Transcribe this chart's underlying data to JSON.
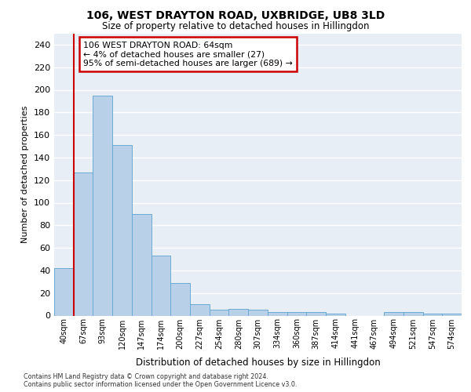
{
  "title1": "106, WEST DRAYTON ROAD, UXBRIDGE, UB8 3LD",
  "title2": "Size of property relative to detached houses in Hillingdon",
  "xlabel": "Distribution of detached houses by size in Hillingdon",
  "ylabel": "Number of detached properties",
  "categories": [
    "40sqm",
    "67sqm",
    "93sqm",
    "120sqm",
    "147sqm",
    "174sqm",
    "200sqm",
    "227sqm",
    "254sqm",
    "280sqm",
    "307sqm",
    "334sqm",
    "360sqm",
    "387sqm",
    "414sqm",
    "441sqm",
    "467sqm",
    "494sqm",
    "521sqm",
    "547sqm",
    "574sqm"
  ],
  "values": [
    42,
    127,
    195,
    151,
    90,
    53,
    29,
    10,
    5,
    6,
    5,
    3,
    3,
    3,
    2,
    0,
    0,
    3,
    3,
    2,
    2
  ],
  "bar_color": "#b8d0e8",
  "bar_edge_color": "#6aaad4",
  "vline_color": "#cc0000",
  "annotation_text": "106 WEST DRAYTON ROAD: 64sqm\n← 4% of detached houses are smaller (27)\n95% of semi-detached houses are larger (689) →",
  "annotation_box_facecolor": "#ffffff",
  "annotation_box_edgecolor": "#cc0000",
  "ylim": [
    0,
    250
  ],
  "yticks": [
    0,
    20,
    40,
    60,
    80,
    100,
    120,
    140,
    160,
    180,
    200,
    220,
    240
  ],
  "bg_color": "#e8eef6",
  "grid_color": "#ffffff",
  "footer_line1": "Contains HM Land Registry data © Crown copyright and database right 2024.",
  "footer_line2": "Contains public sector information licensed under the Open Government Licence v3.0."
}
